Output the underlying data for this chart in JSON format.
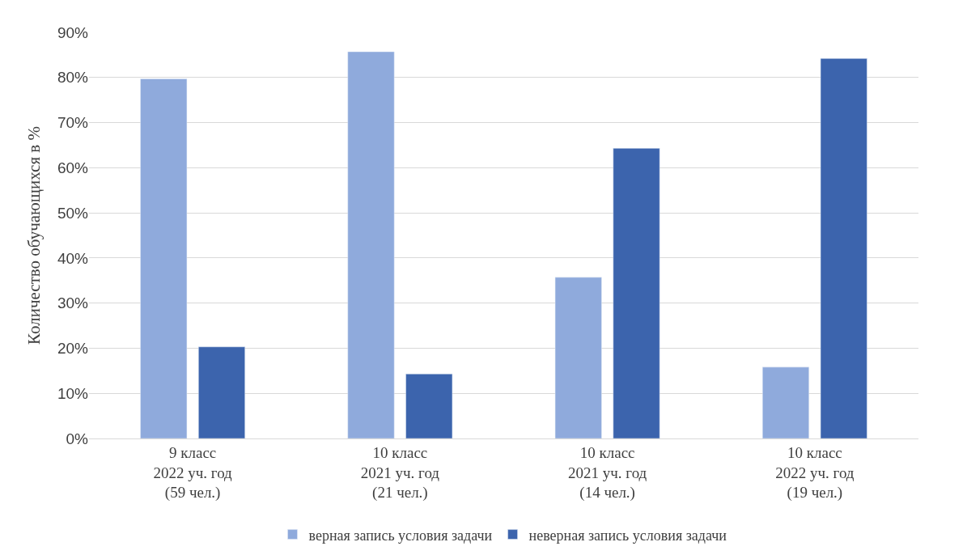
{
  "chart_data": {
    "type": "bar",
    "ylabel": "Количество обучающихся в %",
    "categories": [
      "9 класс\n2022 уч. год\n(59 чел.)",
      "10 класс\n2021 уч. год\n(21 чел.)",
      "10 класс\n2021 уч. год\n(14 чел.)",
      "10 класс\n2022 уч. год\n(19 чел.)"
    ],
    "series": [
      {
        "name": "верная запись условия задачи",
        "color": "#8faadc",
        "values": [
          79.7,
          85.7,
          35.7,
          15.8
        ]
      },
      {
        "name": "неверная запись условия задачи",
        "color": "#3c64ad",
        "values": [
          20.3,
          14.3,
          64.3,
          84.2
        ]
      }
    ],
    "ylim": [
      0,
      90
    ],
    "yticks": [
      {
        "value": 0,
        "label": "0%"
      },
      {
        "value": 10,
        "label": "10%"
      },
      {
        "value": 20,
        "label": "20%"
      },
      {
        "value": 30,
        "label": "30%"
      },
      {
        "value": 40,
        "label": "40%"
      },
      {
        "value": 50,
        "label": "50%"
      },
      {
        "value": 60,
        "label": "60%"
      },
      {
        "value": 70,
        "label": "70%"
      },
      {
        "value": 80,
        "label": "80%"
      },
      {
        "value": 90,
        "label": "90%"
      }
    ],
    "grid": "y",
    "legend": "bottom"
  }
}
